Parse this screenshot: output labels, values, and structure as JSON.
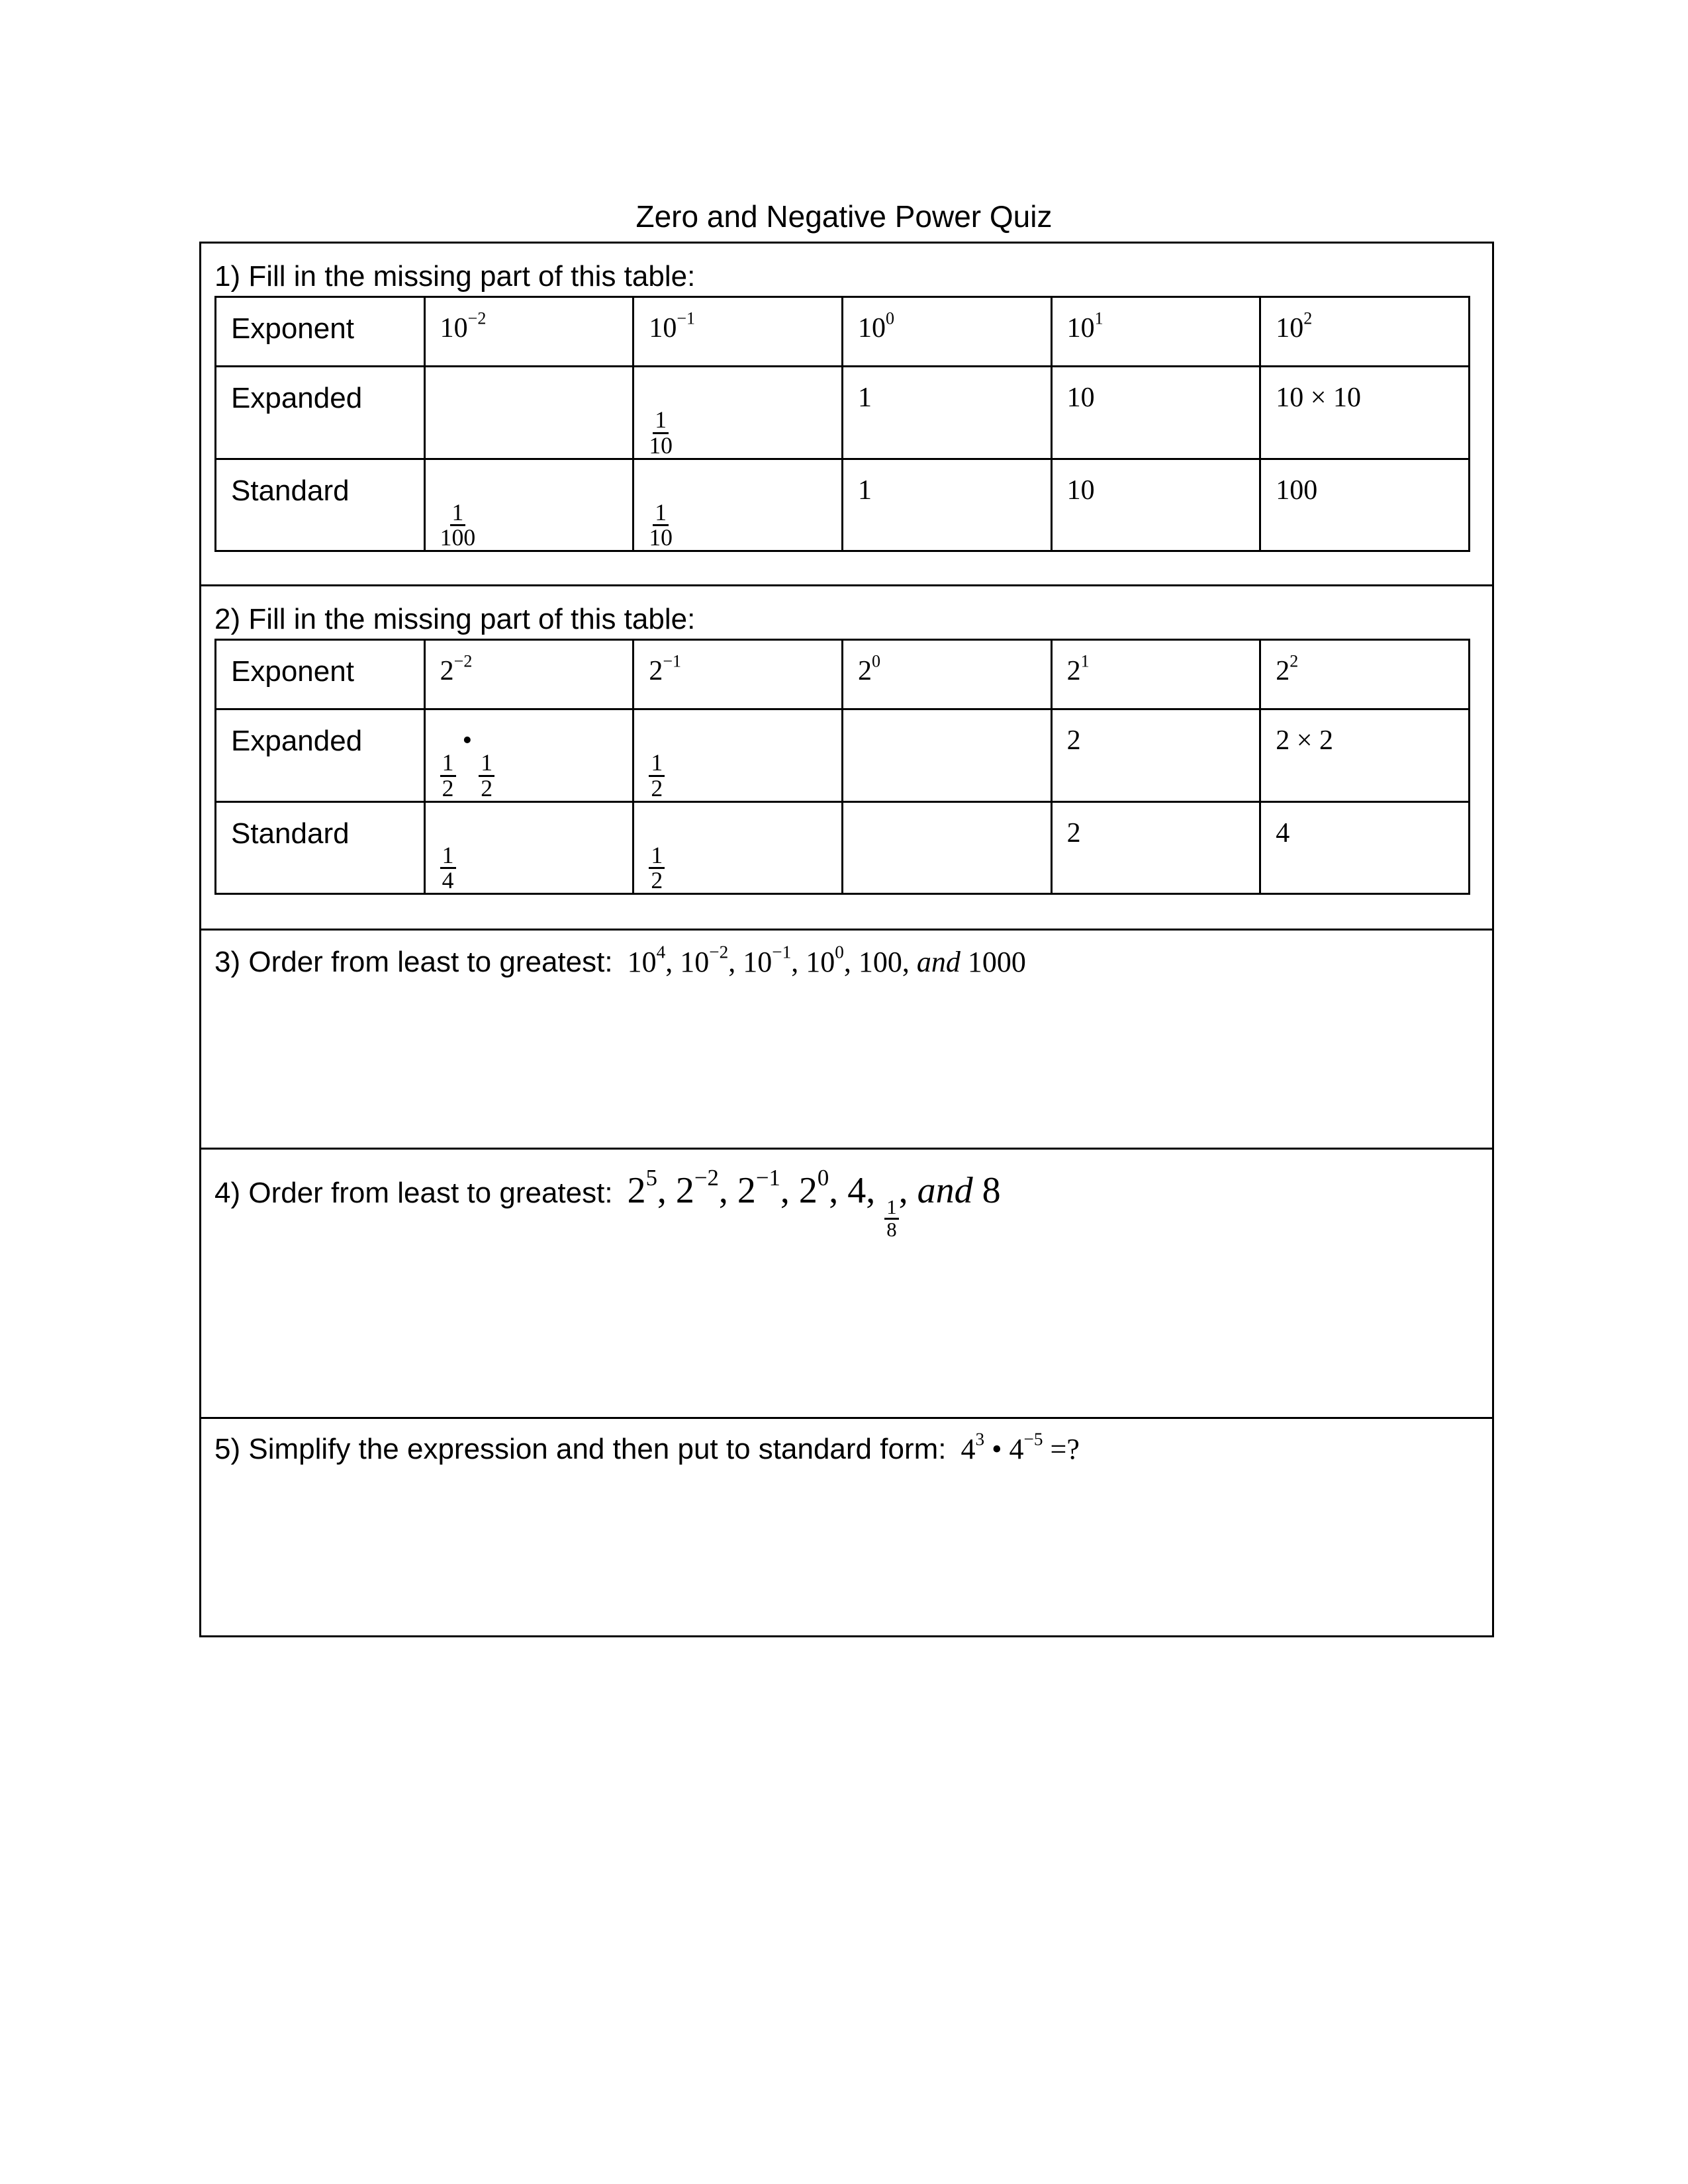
{
  "title": "Zero and Negative Power Quiz",
  "q1": {
    "prompt": "1) Fill in the missing part of this table:",
    "rows": [
      {
        "label": "Exponent",
        "cells": [
          {
            "b": "10",
            "e": "−2"
          },
          {
            "b": "10",
            "e": "−1"
          },
          {
            "b": "10",
            "e": "0"
          },
          {
            "b": "10",
            "e": "1"
          },
          {
            "b": "10",
            "e": "2"
          }
        ]
      },
      {
        "label": "Expanded",
        "cells": [
          {
            "t": ""
          },
          {
            "n": "1",
            "d": "10"
          },
          {
            "t": "1"
          },
          {
            "t": "10"
          },
          {
            "t": "10 × 10"
          }
        ]
      },
      {
        "label": "Standard",
        "cells": [
          {
            "n": "1",
            "d": "100"
          },
          {
            "n": "1",
            "d": "10"
          },
          {
            "t": "1"
          },
          {
            "t": "10"
          },
          {
            "t": "100"
          }
        ]
      }
    ]
  },
  "q2": {
    "prompt": "2) Fill in the missing part of this table:",
    "rows": [
      {
        "label": "Exponent",
        "cells": [
          {
            "b": "2",
            "e": "−2"
          },
          {
            "b": "2",
            "e": "−1"
          },
          {
            "b": "2",
            "e": "0"
          },
          {
            "b": "2",
            "e": "1"
          },
          {
            "b": "2",
            "e": "2"
          }
        ]
      },
      {
        "label": "Expanded",
        "cells": [
          {
            "n": "1",
            "d": "2",
            "op": "•",
            "n2": "1",
            "d2": "2"
          },
          {
            "n": "1",
            "d": "2"
          },
          {
            "t": ""
          },
          {
            "t": "2"
          },
          {
            "t": "2 × 2"
          }
        ]
      },
      {
        "label": "Standard",
        "cells": [
          {
            "n": "1",
            "d": "4"
          },
          {
            "n": "1",
            "d": "2"
          },
          {
            "t": ""
          },
          {
            "t": "2"
          },
          {
            "t": "4"
          }
        ]
      }
    ]
  },
  "q3": {
    "prompt": "3) Order from least to greatest:",
    "tokens": [
      {
        "b": "10",
        "e": "4"
      },
      {
        "t": ", "
      },
      {
        "b": "10",
        "e": "−2"
      },
      {
        "t": ", "
      },
      {
        "b": "10",
        "e": "−1"
      },
      {
        "t": ", "
      },
      {
        "b": "10",
        "e": "0"
      },
      {
        "t": ", 100, "
      },
      {
        "i": "and"
      },
      {
        "t": " 1000"
      }
    ]
  },
  "q4": {
    "prompt": "4) Order from least to greatest:",
    "tokens": [
      {
        "b": "2",
        "e": "5"
      },
      {
        "t": ", "
      },
      {
        "b": "2",
        "e": "−2"
      },
      {
        "t": ", "
      },
      {
        "b": "2",
        "e": "−1"
      },
      {
        "t": ", "
      },
      {
        "b": "2",
        "e": "0"
      },
      {
        "t": ", 4, "
      },
      {
        "n": "1",
        "d": "8"
      },
      {
        "t": ", "
      },
      {
        "i": "and"
      },
      {
        "t": " 8"
      }
    ]
  },
  "q5": {
    "prompt": "5) Simplify the expression and then put to standard form:",
    "tokens": [
      {
        "b": "4",
        "e": "3"
      },
      {
        "t": " • "
      },
      {
        "b": "4",
        "e": "−5"
      },
      {
        "t": " =?"
      }
    ]
  }
}
